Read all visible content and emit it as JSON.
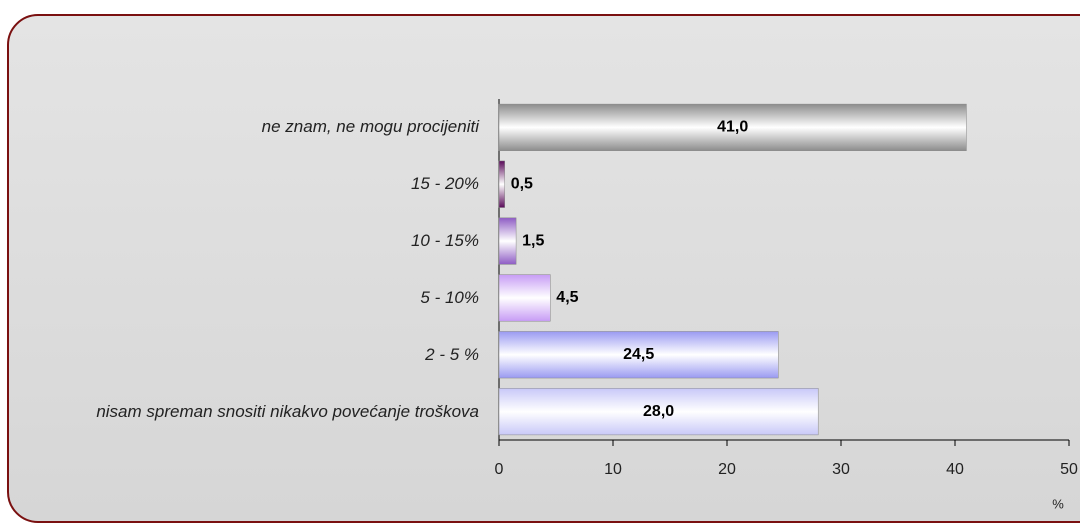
{
  "chart_data": {
    "type": "bar",
    "orientation": "horizontal",
    "categories": [
      "ne znam, ne mogu procijeniti",
      "15 - 20%",
      "10 - 15%",
      "5 - 10%",
      "2 - 5 %",
      "nisam spreman snositi nikakvo povećanje troškova"
    ],
    "values": [
      41.0,
      0.5,
      1.5,
      4.5,
      24.5,
      28.0
    ],
    "value_labels": [
      "41,0",
      "0,5",
      "1,5",
      "4,5",
      "24,5",
      "28,0"
    ],
    "colors": [
      "#8c8c8c",
      "#5a0a5a",
      "#8e5cc4",
      "#c79cf5",
      "#9a9af2",
      "#c8c8f8"
    ],
    "xlim": [
      0,
      50
    ],
    "xticks": [
      0,
      10,
      20,
      30,
      40,
      50
    ],
    "xlabel": "%"
  }
}
